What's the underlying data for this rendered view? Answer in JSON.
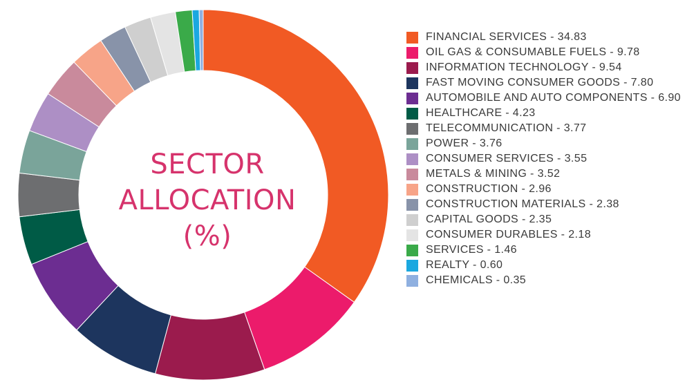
{
  "center_label": {
    "line1": "SECTOR",
    "line2": "ALLOCATION",
    "line3": "(%)"
  },
  "legend": [
    {
      "text": "FINANCIAL SERVICES - 34.83",
      "color": "#f15a24"
    },
    {
      "text": "OIL GAS & CONSUMABLE FUELS - 9.78",
      "color": "#ec1b6b"
    },
    {
      "text": "INFORMATION TECHNOLOGY - 9.54",
      "color": "#9b1b4d"
    },
    {
      "text": "FAST MOVING CONSUMER GOODS - 7.80",
      "color": "#1d355e"
    },
    {
      "text": "AUTOMOBILE AND AUTO COMPONENTS - 6.90",
      "color": "#6c2d91"
    },
    {
      "text": "HEALTHCARE - 4.23",
      "color": "#005b46"
    },
    {
      "text": "TELECOMMUNICATION - 3.77",
      "color": "#6d6e70"
    },
    {
      "text": "POWER - 3.76",
      "color": "#7aa49a"
    },
    {
      "text": "CONSUMER SERVICES - 3.55",
      "color": "#ad8fc5"
    },
    {
      "text": "METALS & MINING - 3.52",
      "color": "#c98a9c"
    },
    {
      "text": "CONSTRUCTION - 2.96",
      "color": "#f7a488"
    },
    {
      "text": "CONSTRUCTION MATERIALS - 2.38",
      "color": "#8893a9"
    },
    {
      "text": "CAPITAL GOODS - 2.35",
      "color": "#cfcfcf"
    },
    {
      "text": "CONSUMER DURABLES - 2.18",
      "color": "#e4e4e4"
    },
    {
      "text": "SERVICES - 1.46",
      "color": "#3aaa49"
    },
    {
      "text": "REALTY - 0.60",
      "color": "#1ba8e0"
    },
    {
      "text": "CHEMICALS - 0.35",
      "color": "#8fb0e0"
    }
  ],
  "chart_data": {
    "type": "pie",
    "categories": [
      "FINANCIAL SERVICES",
      "OIL GAS & CONSUMABLE FUELS",
      "INFORMATION TECHNOLOGY",
      "FAST MOVING CONSUMER GOODS",
      "AUTOMOBILE AND AUTO COMPONENTS",
      "HEALTHCARE",
      "TELECOMMUNICATION",
      "POWER",
      "CONSUMER SERVICES",
      "METALS & MINING",
      "CONSTRUCTION",
      "CONSTRUCTION MATERIALS",
      "CAPITAL GOODS",
      "CONSUMER DURABLES",
      "SERVICES",
      "REALTY",
      "CHEMICALS"
    ],
    "values": [
      34.83,
      9.78,
      9.54,
      7.8,
      6.9,
      4.23,
      3.77,
      3.76,
      3.55,
      3.52,
      2.96,
      2.38,
      2.35,
      2.18,
      1.46,
      0.6,
      0.35
    ],
    "colors": [
      "#f15a24",
      "#ec1b6b",
      "#9b1b4d",
      "#1d355e",
      "#6c2d91",
      "#005b46",
      "#6d6e70",
      "#7aa49a",
      "#ad8fc5",
      "#c98a9c",
      "#f7a488",
      "#8893a9",
      "#cfcfcf",
      "#e4e4e4",
      "#3aaa49",
      "#1ba8e0",
      "#8fb0e0"
    ],
    "title": "SECTOR ALLOCATION (%)",
    "style": "donut",
    "legend_position": "right"
  }
}
